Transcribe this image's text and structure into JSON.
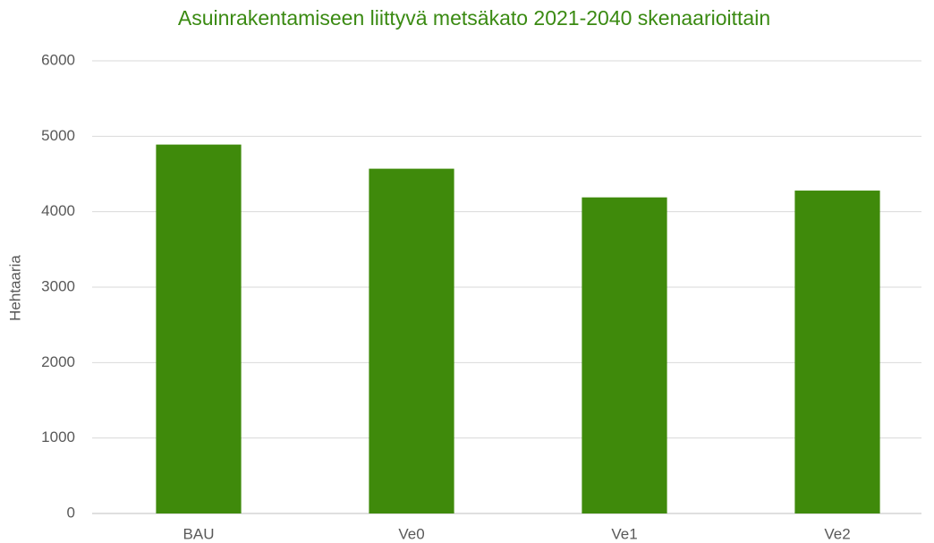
{
  "chart_data": {
    "type": "bar",
    "title": "Asuinrakentamiseen liittyvä metsäkato 2021-2040 skenaarioittain",
    "y_label": "Hehtaaria",
    "categories": [
      "BAU",
      "Ve0",
      "Ve1",
      "Ve2"
    ],
    "values": [
      4890,
      4570,
      4190,
      4280
    ],
    "color": "#3f8a0b",
    "ylim": [
      0,
      6000
    ],
    "yticks": [
      0,
      1000,
      2000,
      3000,
      4000,
      5000,
      6000
    ],
    "grid": true
  }
}
